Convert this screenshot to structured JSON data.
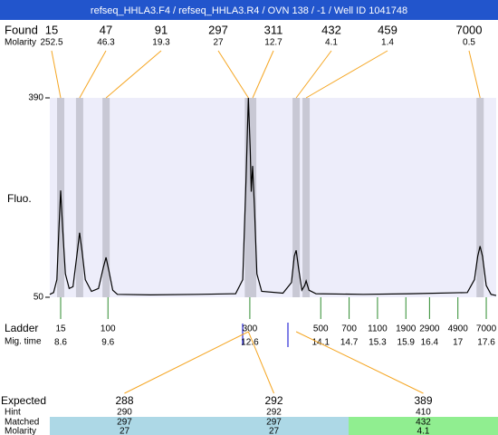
{
  "header": {
    "title": "refseq_HHLA3.F4 / refseq_HHLA3.R4 / OVN 138 / -1 / Well ID 1041748"
  },
  "chart_data": {
    "type": "line",
    "ylabel": "Fluo.",
    "xlim": [
      8.37,
      17.81
    ],
    "ylim": [
      50,
      390
    ],
    "yticks": [
      50,
      390
    ],
    "color": "#000000",
    "plot_color": "#ededfa",
    "x": [
      8.37,
      8.45,
      8.52,
      8.56,
      8.6,
      8.64,
      8.7,
      8.78,
      8.86,
      8.94,
      9.0,
      9.05,
      9.12,
      9.25,
      9.4,
      9.5,
      9.56,
      9.62,
      9.7,
      9.8,
      10.5,
      11.5,
      12.3,
      12.45,
      12.52,
      12.57,
      12.61,
      12.63,
      12.66,
      12.7,
      12.75,
      12.85,
      13.3,
      13.48,
      13.54,
      13.58,
      13.63,
      13.7,
      13.76,
      13.79,
      13.85,
      14.0,
      15.0,
      16.0,
      17.2,
      17.35,
      17.42,
      17.47,
      17.52,
      17.6,
      17.7,
      17.81
    ],
    "values": [
      55,
      58,
      80,
      160,
      232,
      170,
      90,
      65,
      68,
      120,
      160,
      130,
      80,
      60,
      65,
      100,
      118,
      95,
      62,
      55,
      54,
      55,
      56,
      80,
      250,
      390,
      300,
      230,
      274,
      200,
      90,
      60,
      57,
      75,
      120,
      130,
      100,
      62,
      70,
      78,
      62,
      56,
      55,
      56,
      58,
      80,
      120,
      137,
      120,
      70,
      55,
      53
    ],
    "found": {
      "label": "Found",
      "molarity_label": "Molarity",
      "color": "#f5a623",
      "sizes": [
        15,
        47,
        91,
        297,
        311,
        432,
        459,
        7000
      ],
      "molarity": [
        252.5,
        46.3,
        19.3,
        27,
        12.7,
        4.1,
        1.4,
        0.5
      ],
      "times": [
        8.6,
        9.0,
        9.56,
        12.57,
        12.66,
        13.58,
        13.79,
        17.47
      ]
    },
    "ladder": {
      "label": "Ladder",
      "time_label": "Mig. time",
      "color": "#2e8b2e",
      "sizes": [
        15,
        100,
        300,
        500,
        700,
        1100,
        1900,
        2900,
        4900,
        7000
      ],
      "times": [
        8.6,
        9.6,
        12.6,
        14.1,
        14.7,
        15.3,
        15.9,
        16.4,
        17,
        17.6
      ]
    }
  },
  "expected": {
    "labels": [
      "Expected",
      "Hint",
      "Matched",
      "Molarity"
    ],
    "columns": [
      {
        "expected": 288,
        "hint": 290,
        "matched": 297,
        "molarity": 27,
        "color": "#add8e6"
      },
      {
        "expected": 292,
        "hint": 292,
        "matched": 297,
        "molarity": 27,
        "color": "#add8e6"
      },
      {
        "expected": 389,
        "hint": 410,
        "matched": 432,
        "molarity": 4.1,
        "color": "#90ee90"
      }
    ]
  }
}
